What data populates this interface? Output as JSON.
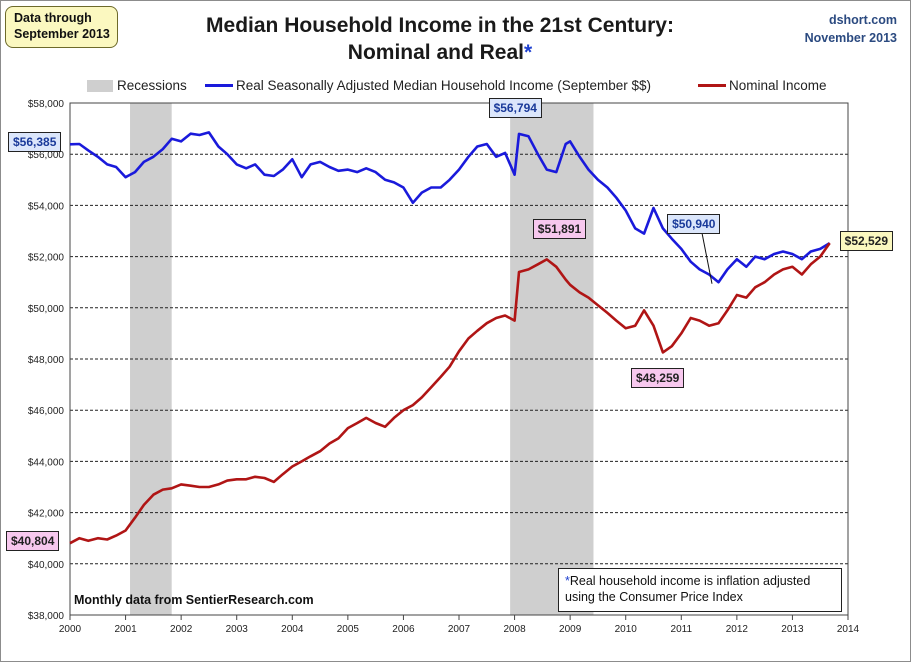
{
  "header": {
    "title_line1": "Median Household Income in the 21st Century:",
    "title_line2": "Nominal and Real",
    "title_star": "*",
    "data_note_line1": "Data through",
    "data_note_line2": "September 2013",
    "site": "dshort.com",
    "date": "November 2013"
  },
  "legend": {
    "recessions": "Recessions",
    "real": "Real Seasonally Adjusted Median Household Income (September $$)",
    "nominal": "Nominal Income"
  },
  "footnote": {
    "star": "*",
    "line1": "Real household  income is inflation adjusted",
    "line2": "using  the Consumer Price Index"
  },
  "source_note": "Monthly data from SentierResearch.com",
  "colors": {
    "real": "#1a1adb",
    "nominal": "#b01515",
    "recession": "#cfcfcf",
    "grid": "#1a1a1a"
  },
  "chart_data": {
    "type": "line",
    "title": "Median Household Income in the 21st Century: Nominal and Real*",
    "ylim": [
      38000,
      58000
    ],
    "xlim": [
      2000,
      2014
    ],
    "y_ticks": [
      "$38,000",
      "$40,000",
      "$42,000",
      "$44,000",
      "$46,000",
      "$48,000",
      "$50,000",
      "$52,000",
      "$54,000",
      "$56,000",
      "$58,000"
    ],
    "x_ticks": [
      "2000",
      "2001",
      "2002",
      "2003",
      "2004",
      "2005",
      "2006",
      "2007",
      "2008",
      "2009",
      "2010",
      "2011",
      "2012",
      "2013",
      "2014"
    ],
    "recessions": [
      [
        2001.08,
        2001.83
      ],
      [
        2007.92,
        2009.42
      ]
    ],
    "annotations": [
      {
        "label": "$56,385",
        "x": 2000.0,
        "y": 56385,
        "style": "blue"
      },
      {
        "label": "$56,794",
        "x": 2008.0,
        "y": 56794,
        "style": "blue"
      },
      {
        "label": "$50,940",
        "x": 2011.5,
        "y": 50940,
        "style": "blue"
      },
      {
        "label": "$52,529",
        "x": 2013.67,
        "y": 52529,
        "style": "yellow"
      },
      {
        "label": "$51,891",
        "x": 2008.58,
        "y": 51891,
        "style": "pink"
      },
      {
        "label": "$48,259",
        "x": 2010.67,
        "y": 48259,
        "style": "pink"
      },
      {
        "label": "$40,804",
        "x": 2000.0,
        "y": 40804,
        "style": "pink"
      }
    ],
    "series": [
      {
        "name": "Real Seasonally Adjusted Median Household Income (September $$)",
        "color": "#1a1adb",
        "points": [
          [
            2000.0,
            56385
          ],
          [
            2000.17,
            56400
          ],
          [
            2000.33,
            56150
          ],
          [
            2000.5,
            55900
          ],
          [
            2000.67,
            55600
          ],
          [
            2000.83,
            55500
          ],
          [
            2001.0,
            55100
          ],
          [
            2001.17,
            55300
          ],
          [
            2001.33,
            55700
          ],
          [
            2001.5,
            55900
          ],
          [
            2001.67,
            56200
          ],
          [
            2001.83,
            56600
          ],
          [
            2002.0,
            56500
          ],
          [
            2002.17,
            56800
          ],
          [
            2002.33,
            56750
          ],
          [
            2002.5,
            56850
          ],
          [
            2002.67,
            56300
          ],
          [
            2002.83,
            56000
          ],
          [
            2003.0,
            55600
          ],
          [
            2003.17,
            55450
          ],
          [
            2003.33,
            55600
          ],
          [
            2003.5,
            55200
          ],
          [
            2003.67,
            55150
          ],
          [
            2003.83,
            55400
          ],
          [
            2004.0,
            55800
          ],
          [
            2004.17,
            55100
          ],
          [
            2004.33,
            55600
          ],
          [
            2004.5,
            55700
          ],
          [
            2004.67,
            55500
          ],
          [
            2004.83,
            55350
          ],
          [
            2005.0,
            55400
          ],
          [
            2005.17,
            55300
          ],
          [
            2005.33,
            55450
          ],
          [
            2005.5,
            55300
          ],
          [
            2005.67,
            55000
          ],
          [
            2005.83,
            54900
          ],
          [
            2006.0,
            54700
          ],
          [
            2006.17,
            54100
          ],
          [
            2006.33,
            54500
          ],
          [
            2006.5,
            54700
          ],
          [
            2006.67,
            54700
          ],
          [
            2006.83,
            55000
          ],
          [
            2007.0,
            55400
          ],
          [
            2007.17,
            55900
          ],
          [
            2007.33,
            56300
          ],
          [
            2007.5,
            56400
          ],
          [
            2007.67,
            55900
          ],
          [
            2007.83,
            56050
          ],
          [
            2008.0,
            55200
          ],
          [
            2008.08,
            56794
          ],
          [
            2008.25,
            56700
          ],
          [
            2008.42,
            56000
          ],
          [
            2008.58,
            55400
          ],
          [
            2008.75,
            55300
          ],
          [
            2008.92,
            56400
          ],
          [
            2009.0,
            56500
          ],
          [
            2009.17,
            55900
          ],
          [
            2009.33,
            55400
          ],
          [
            2009.5,
            55000
          ],
          [
            2009.67,
            54700
          ],
          [
            2009.83,
            54300
          ],
          [
            2010.0,
            53800
          ],
          [
            2010.17,
            53100
          ],
          [
            2010.33,
            52900
          ],
          [
            2010.5,
            53900
          ],
          [
            2010.67,
            53100
          ],
          [
            2010.83,
            52700
          ],
          [
            2011.0,
            52300
          ],
          [
            2011.17,
            51800
          ],
          [
            2011.33,
            51500
          ],
          [
            2011.5,
            51300
          ],
          [
            2011.67,
            51000
          ],
          [
            2011.83,
            51500
          ],
          [
            2012.0,
            51900
          ],
          [
            2012.17,
            51600
          ],
          [
            2012.33,
            52000
          ],
          [
            2012.5,
            51900
          ],
          [
            2012.67,
            52100
          ],
          [
            2012.83,
            52200
          ],
          [
            2013.0,
            52100
          ],
          [
            2013.17,
            51900
          ],
          [
            2013.33,
            52200
          ],
          [
            2013.5,
            52300
          ],
          [
            2013.67,
            52529
          ]
        ]
      },
      {
        "name": "Nominal Income",
        "color": "#b01515",
        "points": [
          [
            2000.0,
            40804
          ],
          [
            2000.17,
            41000
          ],
          [
            2000.33,
            40900
          ],
          [
            2000.5,
            41000
          ],
          [
            2000.67,
            40950
          ],
          [
            2000.83,
            41100
          ],
          [
            2001.0,
            41300
          ],
          [
            2001.17,
            41800
          ],
          [
            2001.33,
            42300
          ],
          [
            2001.5,
            42700
          ],
          [
            2001.67,
            42900
          ],
          [
            2001.83,
            42950
          ],
          [
            2002.0,
            43100
          ],
          [
            2002.17,
            43050
          ],
          [
            2002.33,
            43000
          ],
          [
            2002.5,
            43000
          ],
          [
            2002.67,
            43100
          ],
          [
            2002.83,
            43250
          ],
          [
            2003.0,
            43300
          ],
          [
            2003.17,
            43300
          ],
          [
            2003.33,
            43400
          ],
          [
            2003.5,
            43350
          ],
          [
            2003.67,
            43200
          ],
          [
            2003.83,
            43500
          ],
          [
            2004.0,
            43800
          ],
          [
            2004.17,
            44000
          ],
          [
            2004.33,
            44200
          ],
          [
            2004.5,
            44400
          ],
          [
            2004.67,
            44700
          ],
          [
            2004.83,
            44900
          ],
          [
            2005.0,
            45300
          ],
          [
            2005.17,
            45500
          ],
          [
            2005.33,
            45700
          ],
          [
            2005.5,
            45500
          ],
          [
            2005.67,
            45350
          ],
          [
            2005.83,
            45700
          ],
          [
            2006.0,
            46000
          ],
          [
            2006.17,
            46200
          ],
          [
            2006.33,
            46500
          ],
          [
            2006.5,
            46900
          ],
          [
            2006.67,
            47300
          ],
          [
            2006.83,
            47700
          ],
          [
            2007.0,
            48300
          ],
          [
            2007.17,
            48800
          ],
          [
            2007.33,
            49100
          ],
          [
            2007.5,
            49400
          ],
          [
            2007.67,
            49600
          ],
          [
            2007.83,
            49700
          ],
          [
            2008.0,
            49500
          ],
          [
            2008.08,
            51400
          ],
          [
            2008.25,
            51500
          ],
          [
            2008.42,
            51700
          ],
          [
            2008.58,
            51891
          ],
          [
            2008.75,
            51600
          ],
          [
            2008.92,
            51100
          ],
          [
            2009.0,
            50900
          ],
          [
            2009.17,
            50600
          ],
          [
            2009.33,
            50400
          ],
          [
            2009.5,
            50100
          ],
          [
            2009.67,
            49800
          ],
          [
            2009.83,
            49500
          ],
          [
            2010.0,
            49200
          ],
          [
            2010.17,
            49300
          ],
          [
            2010.33,
            49900
          ],
          [
            2010.5,
            49300
          ],
          [
            2010.67,
            48259
          ],
          [
            2010.83,
            48500
          ],
          [
            2011.0,
            49000
          ],
          [
            2011.17,
            49600
          ],
          [
            2011.33,
            49500
          ],
          [
            2011.5,
            49300
          ],
          [
            2011.67,
            49400
          ],
          [
            2011.83,
            49900
          ],
          [
            2012.0,
            50500
          ],
          [
            2012.17,
            50400
          ],
          [
            2012.33,
            50800
          ],
          [
            2012.5,
            51000
          ],
          [
            2012.67,
            51300
          ],
          [
            2012.83,
            51500
          ],
          [
            2013.0,
            51600
          ],
          [
            2013.17,
            51300
          ],
          [
            2013.33,
            51700
          ],
          [
            2013.5,
            52000
          ],
          [
            2013.67,
            52529
          ]
        ]
      }
    ]
  }
}
